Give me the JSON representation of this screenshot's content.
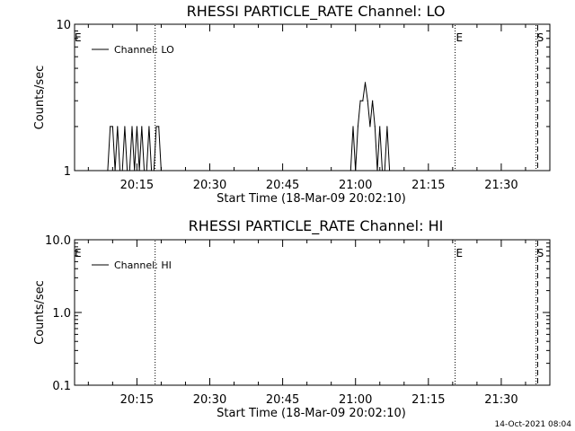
{
  "footer": {
    "timestamp": "14-Oct-2021 08:04"
  },
  "chart_data": [
    {
      "type": "line",
      "title": "RHESSI PARTICLE_RATE Channel: LO",
      "xlabel": "Start Time (18-Mar-09 20:02:10)",
      "ylabel": "Counts/sec",
      "yscale": "log",
      "ylim": [
        1,
        10
      ],
      "xlim": [
        "20:02:10",
        "21:40:00"
      ],
      "yticks": [
        "1",
        "10"
      ],
      "xticks": [
        "20:15",
        "20:30",
        "20:45",
        "21:00",
        "21:15",
        "21:30"
      ],
      "legend": "top-left",
      "grid": false,
      "series": [
        {
          "name": "Channel: LO",
          "x": [
            "20:09:00",
            "20:09:30",
            "20:10:00",
            "20:10:30",
            "20:11:00",
            "20:11:30",
            "20:12:00",
            "20:12:30",
            "20:13:00",
            "20:13:30",
            "20:14:00",
            "20:14:30",
            "20:15:00",
            "20:15:30",
            "20:16:00",
            "20:16:30",
            "20:17:00",
            "20:17:30",
            "20:18:00",
            "20:18:30",
            "20:19:00",
            "20:19:30",
            "20:20:00",
            "20:59:00",
            "20:59:30",
            "21:00:00",
            "21:00:30",
            "21:01:00",
            "21:01:30",
            "21:02:00",
            "21:02:30",
            "21:03:00",
            "21:03:30",
            "21:04:00",
            "21:04:30",
            "21:05:00",
            "21:05:30",
            "21:06:00",
            "21:06:30",
            "21:07:00"
          ],
          "values": [
            1,
            2,
            2,
            1,
            2,
            1,
            1,
            2,
            1,
            1,
            2,
            1,
            2,
            1,
            2,
            1,
            1,
            2,
            1,
            1,
            2,
            2,
            1,
            1,
            2,
            1,
            2,
            3,
            3,
            4,
            3,
            2,
            3,
            2,
            1,
            2,
            1,
            1,
            2,
            1
          ]
        }
      ],
      "markers": [
        {
          "label": "E",
          "x": "20:02:10",
          "style": "dotted"
        },
        {
          "label": "",
          "x": "20:18:45",
          "style": "dotted"
        },
        {
          "label": "E",
          "x": "21:20:30",
          "style": "dotted"
        },
        {
          "label": "S",
          "x": "21:37:10",
          "style": "dotted"
        },
        {
          "label": "",
          "x": "21:37:30",
          "style": "dashed"
        }
      ]
    },
    {
      "type": "line",
      "title": "RHESSI PARTICLE_RATE Channel: HI",
      "xlabel": "Start Time (18-Mar-09 20:02:10)",
      "ylabel": "Counts/sec",
      "yscale": "log",
      "ylim": [
        0.1,
        10
      ],
      "xlim": [
        "20:02:10",
        "21:40:00"
      ],
      "yticks": [
        "0.1",
        "1.0",
        "10.0"
      ],
      "xticks": [
        "20:15",
        "20:30",
        "20:45",
        "21:00",
        "21:15",
        "21:30"
      ],
      "legend": "top-left",
      "grid": false,
      "series": [
        {
          "name": "Channel: HI",
          "x": [],
          "values": []
        }
      ],
      "markers": [
        {
          "label": "E",
          "x": "20:02:10",
          "style": "dotted"
        },
        {
          "label": "",
          "x": "20:18:45",
          "style": "dotted"
        },
        {
          "label": "E",
          "x": "21:20:30",
          "style": "dotted"
        },
        {
          "label": "S",
          "x": "21:37:10",
          "style": "dotted"
        },
        {
          "label": "",
          "x": "21:37:30",
          "style": "dashed"
        }
      ]
    }
  ]
}
